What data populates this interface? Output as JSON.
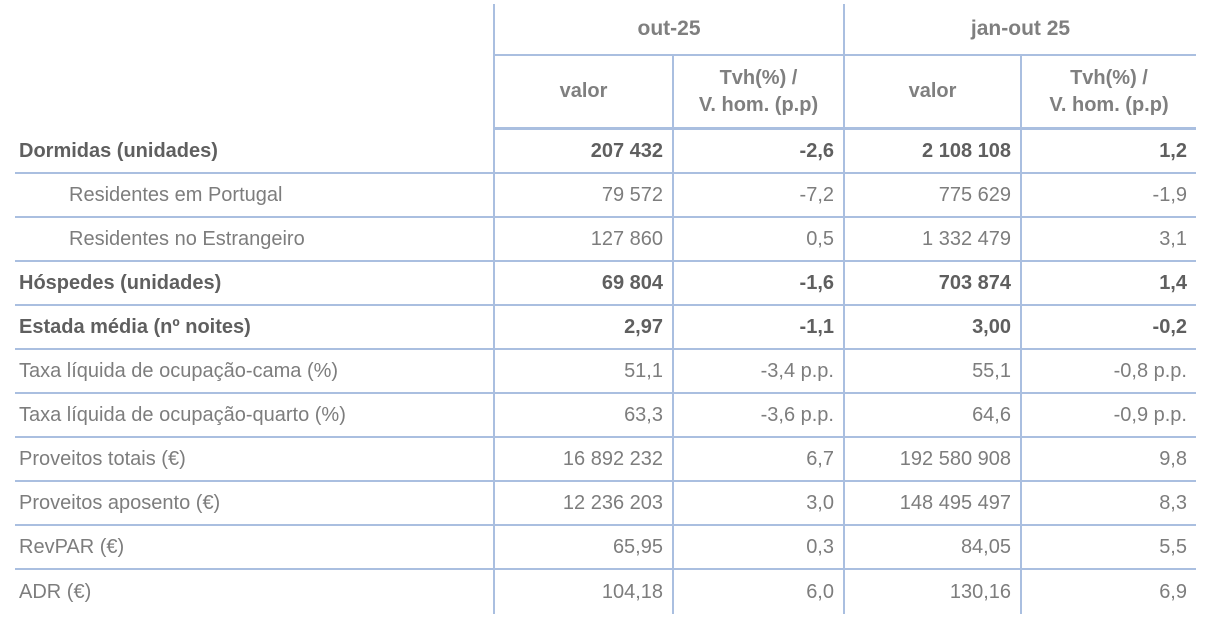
{
  "colors": {
    "border": "#aabfe0",
    "text": "#7d7d7d",
    "text_emphasis": "#5f5f5f",
    "background": "#ffffff"
  },
  "chart_data": {
    "type": "table",
    "title": "",
    "column_groups": [
      {
        "label": "out-25",
        "columns": [
          "valor",
          "Tvh(%) / V. hom. (p.p)"
        ]
      },
      {
        "label": "jan-out 25",
        "columns": [
          "valor",
          "Tvh(%) / V. hom. (p.p)"
        ]
      }
    ],
    "sub_header": {
      "valor": "valor",
      "tvh_line1": "Tvh(%) /",
      "tvh_line2": "V. hom. (p.p)"
    },
    "rows": [
      {
        "label": "Dormidas (unidades)",
        "emphasis": true,
        "indent": false,
        "values": [
          "207 432",
          "-2,6",
          "2 108 108",
          "1,2"
        ]
      },
      {
        "label": "Residentes em Portugal",
        "emphasis": false,
        "indent": true,
        "values": [
          "79 572",
          "-7,2",
          "775 629",
          "-1,9"
        ]
      },
      {
        "label": "Residentes no Estrangeiro",
        "emphasis": false,
        "indent": true,
        "values": [
          "127 860",
          "0,5",
          "1 332 479",
          "3,1"
        ]
      },
      {
        "label": "Hóspedes (unidades)",
        "emphasis": true,
        "indent": false,
        "values": [
          "69 804",
          "-1,6",
          "703 874",
          "1,4"
        ]
      },
      {
        "label": "Estada média (nº noites)",
        "emphasis": true,
        "indent": false,
        "values": [
          "2,97",
          "-1,1",
          "3,00",
          "-0,2"
        ]
      },
      {
        "label": "Taxa líquida de ocupação-cama (%)",
        "emphasis": false,
        "indent": false,
        "values": [
          "51,1",
          "-3,4 p.p.",
          "55,1",
          "-0,8 p.p."
        ]
      },
      {
        "label": "Taxa líquida de ocupação-quarto (%)",
        "emphasis": false,
        "indent": false,
        "values": [
          "63,3",
          "-3,6 p.p.",
          "64,6",
          "-0,9 p.p."
        ]
      },
      {
        "label": "Proveitos totais (€)",
        "emphasis": false,
        "indent": false,
        "values": [
          "16 892 232",
          "6,7",
          "192 580 908",
          "9,8"
        ]
      },
      {
        "label": "Proveitos aposento (€)",
        "emphasis": false,
        "indent": false,
        "values": [
          "12 236 203",
          "3,0",
          "148 495 497",
          "8,3"
        ]
      },
      {
        "label": "RevPAR (€)",
        "emphasis": false,
        "indent": false,
        "values": [
          "65,95",
          "0,3",
          "84,05",
          "5,5"
        ]
      },
      {
        "label": "ADR (€)",
        "emphasis": false,
        "indent": false,
        "values": [
          "104,18",
          "6,0",
          "130,16",
          "6,9"
        ]
      }
    ]
  }
}
